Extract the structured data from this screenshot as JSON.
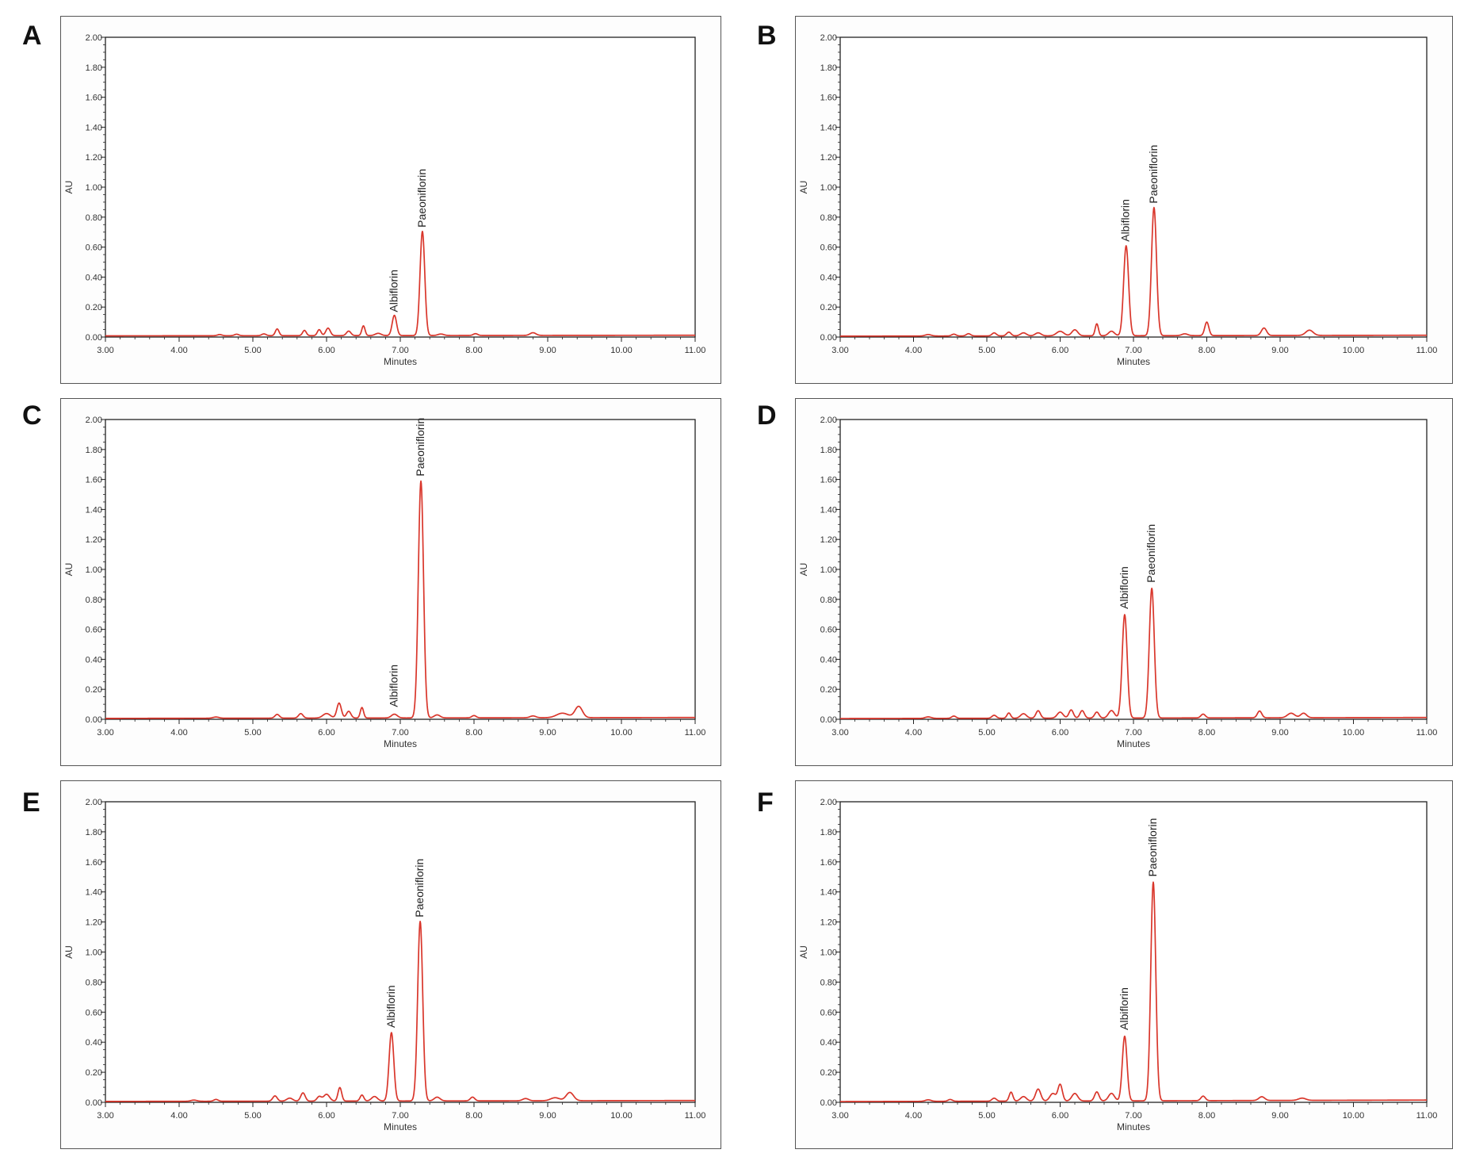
{
  "chart_data": [
    {
      "panel_label": "A",
      "type": "line",
      "xlabel": "Minutes",
      "ylabel": "AU",
      "xlim": [
        3.0,
        11.0
      ],
      "ylim": [
        0.0,
        2.0
      ],
      "x_ticks": [
        "3.00",
        "4.00",
        "5.00",
        "6.00",
        "7.00",
        "8.00",
        "9.00",
        "10.00",
        "11.00"
      ],
      "y_ticks": [
        "0.00",
        "0.20",
        "0.40",
        "0.60",
        "0.80",
        "1.00",
        "1.20",
        "1.40",
        "1.60",
        "1.80",
        "2.00"
      ],
      "color": "#d9362b",
      "baseline": [
        [
          3.0,
          0.008
        ],
        [
          11.0,
          0.012
        ]
      ],
      "peaks": [
        {
          "x": 4.55,
          "h": 0.008,
          "w": 0.03
        },
        {
          "x": 4.78,
          "h": 0.01,
          "w": 0.03
        },
        {
          "x": 5.15,
          "h": 0.012,
          "w": 0.03
        },
        {
          "x": 5.33,
          "h": 0.045,
          "w": 0.025
        },
        {
          "x": 5.7,
          "h": 0.035,
          "w": 0.025
        },
        {
          "x": 5.9,
          "h": 0.04,
          "w": 0.025
        },
        {
          "x": 6.02,
          "h": 0.05,
          "w": 0.03
        },
        {
          "x": 6.3,
          "h": 0.03,
          "w": 0.03
        },
        {
          "x": 6.5,
          "h": 0.065,
          "w": 0.022
        },
        {
          "x": 6.7,
          "h": 0.015,
          "w": 0.04
        },
        {
          "x": 6.92,
          "h": 0.135,
          "w": 0.03
        },
        {
          "x": 7.3,
          "h": 0.695,
          "w": 0.032
        },
        {
          "x": 7.55,
          "h": 0.01,
          "w": 0.04
        },
        {
          "x": 8.02,
          "h": 0.012,
          "w": 0.03
        },
        {
          "x": 8.8,
          "h": 0.018,
          "w": 0.04
        }
      ],
      "annotations": [
        {
          "text": "Albiflorin",
          "x": 6.92,
          "y": 0.145
        },
        {
          "text": "Paeoniflorin",
          "x": 7.3,
          "y": 0.71
        }
      ]
    },
    {
      "panel_label": "B",
      "type": "line",
      "xlabel": "Minutes",
      "ylabel": "AU",
      "xlim": [
        3.0,
        11.0
      ],
      "ylim": [
        0.0,
        2.0
      ],
      "x_ticks": [
        "3.00",
        "4.00",
        "5.00",
        "6.00",
        "7.00",
        "8.00",
        "9.00",
        "10.00",
        "11.00"
      ],
      "y_ticks": [
        "0.00",
        "0.20",
        "0.40",
        "0.60",
        "0.80",
        "1.00",
        "1.20",
        "1.40",
        "1.60",
        "1.80",
        "2.00"
      ],
      "color": "#d9362b",
      "baseline": [
        [
          3.0,
          0.006
        ],
        [
          11.0,
          0.012
        ]
      ],
      "peaks": [
        {
          "x": 4.2,
          "h": 0.01,
          "w": 0.04
        },
        {
          "x": 4.55,
          "h": 0.012,
          "w": 0.03
        },
        {
          "x": 4.75,
          "h": 0.015,
          "w": 0.03
        },
        {
          "x": 5.1,
          "h": 0.02,
          "w": 0.03
        },
        {
          "x": 5.3,
          "h": 0.025,
          "w": 0.03
        },
        {
          "x": 5.5,
          "h": 0.02,
          "w": 0.04
        },
        {
          "x": 5.7,
          "h": 0.02,
          "w": 0.04
        },
        {
          "x": 6.0,
          "h": 0.03,
          "w": 0.05
        },
        {
          "x": 6.2,
          "h": 0.04,
          "w": 0.04
        },
        {
          "x": 6.5,
          "h": 0.08,
          "w": 0.022
        },
        {
          "x": 6.7,
          "h": 0.03,
          "w": 0.04
        },
        {
          "x": 6.9,
          "h": 0.6,
          "w": 0.034
        },
        {
          "x": 7.28,
          "h": 0.855,
          "w": 0.034
        },
        {
          "x": 7.7,
          "h": 0.012,
          "w": 0.04
        },
        {
          "x": 8.0,
          "h": 0.09,
          "w": 0.028
        },
        {
          "x": 8.78,
          "h": 0.05,
          "w": 0.035
        },
        {
          "x": 9.4,
          "h": 0.035,
          "w": 0.05
        }
      ],
      "annotations": [
        {
          "text": "Albiflorin",
          "x": 6.9,
          "y": 0.615
        },
        {
          "text": "Paeoniflorin",
          "x": 7.28,
          "y": 0.87
        }
      ]
    },
    {
      "panel_label": "C",
      "type": "line",
      "xlabel": "Minutes",
      "ylabel": "AU",
      "xlim": [
        3.0,
        11.0
      ],
      "ylim": [
        0.0,
        2.0
      ],
      "x_ticks": [
        "3.00",
        "4.00",
        "5.00",
        "6.00",
        "7.00",
        "8.00",
        "9.00",
        "10.00",
        "11.00"
      ],
      "y_ticks": [
        "0.00",
        "0.20",
        "0.40",
        "0.60",
        "0.80",
        "1.00",
        "1.20",
        "1.40",
        "1.60",
        "1.80",
        "2.00"
      ],
      "color": "#d9362b",
      "baseline": [
        [
          3.0,
          0.006
        ],
        [
          11.0,
          0.012
        ]
      ],
      "peaks": [
        {
          "x": 4.5,
          "h": 0.008,
          "w": 0.04
        },
        {
          "x": 5.33,
          "h": 0.025,
          "w": 0.03
        },
        {
          "x": 5.65,
          "h": 0.03,
          "w": 0.03
        },
        {
          "x": 6.0,
          "h": 0.03,
          "w": 0.05
        },
        {
          "x": 6.17,
          "h": 0.1,
          "w": 0.03
        },
        {
          "x": 6.3,
          "h": 0.045,
          "w": 0.03
        },
        {
          "x": 6.48,
          "h": 0.07,
          "w": 0.022
        },
        {
          "x": 6.92,
          "h": 0.025,
          "w": 0.04
        },
        {
          "x": 7.28,
          "h": 1.58,
          "w": 0.035
        },
        {
          "x": 7.5,
          "h": 0.02,
          "w": 0.04
        },
        {
          "x": 8.0,
          "h": 0.015,
          "w": 0.03
        },
        {
          "x": 8.8,
          "h": 0.012,
          "w": 0.04
        },
        {
          "x": 9.2,
          "h": 0.03,
          "w": 0.08
        },
        {
          "x": 9.42,
          "h": 0.075,
          "w": 0.05
        }
      ],
      "annotations": [
        {
          "text": "Albiflorin",
          "x": 6.92,
          "y": 0.06
        },
        {
          "text": "Paeoniflorin",
          "x": 7.28,
          "y": 1.6
        }
      ]
    },
    {
      "panel_label": "D",
      "type": "line",
      "xlabel": "Minutes",
      "ylabel": "AU",
      "xlim": [
        3.0,
        11.0
      ],
      "ylim": [
        0.0,
        2.0
      ],
      "x_ticks": [
        "3.00",
        "4.00",
        "5.00",
        "6.00",
        "7.00",
        "8.00",
        "9.00",
        "10.00",
        "11.00"
      ],
      "y_ticks": [
        "0.00",
        "0.20",
        "0.40",
        "0.60",
        "0.80",
        "1.00",
        "1.20",
        "1.40",
        "1.60",
        "1.80",
        "2.00"
      ],
      "color": "#d9362b",
      "baseline": [
        [
          3.0,
          0.005
        ],
        [
          11.0,
          0.012
        ]
      ],
      "peaks": [
        {
          "x": 4.2,
          "h": 0.01,
          "w": 0.04
        },
        {
          "x": 4.55,
          "h": 0.015,
          "w": 0.03
        },
        {
          "x": 5.1,
          "h": 0.02,
          "w": 0.03
        },
        {
          "x": 5.3,
          "h": 0.035,
          "w": 0.025
        },
        {
          "x": 5.5,
          "h": 0.03,
          "w": 0.04
        },
        {
          "x": 5.7,
          "h": 0.05,
          "w": 0.03
        },
        {
          "x": 6.0,
          "h": 0.04,
          "w": 0.04
        },
        {
          "x": 6.15,
          "h": 0.055,
          "w": 0.03
        },
        {
          "x": 6.3,
          "h": 0.05,
          "w": 0.03
        },
        {
          "x": 6.5,
          "h": 0.04,
          "w": 0.03
        },
        {
          "x": 6.7,
          "h": 0.05,
          "w": 0.04
        },
        {
          "x": 6.88,
          "h": 0.69,
          "w": 0.034
        },
        {
          "x": 7.25,
          "h": 0.865,
          "w": 0.034
        },
        {
          "x": 7.95,
          "h": 0.025,
          "w": 0.03
        },
        {
          "x": 8.72,
          "h": 0.045,
          "w": 0.03
        },
        {
          "x": 9.15,
          "h": 0.03,
          "w": 0.05
        },
        {
          "x": 9.32,
          "h": 0.03,
          "w": 0.04
        }
      ],
      "annotations": [
        {
          "text": "Albiflorin",
          "x": 6.88,
          "y": 0.715
        },
        {
          "text": "Paeoniflorin",
          "x": 7.25,
          "y": 0.89
        }
      ]
    },
    {
      "panel_label": "E",
      "type": "line",
      "xlabel": "Minutes",
      "ylabel": "AU",
      "xlim": [
        3.0,
        11.0
      ],
      "ylim": [
        0.0,
        2.0
      ],
      "x_ticks": [
        "3.00",
        "4.00",
        "5.00",
        "6.00",
        "7.00",
        "8.00",
        "9.00",
        "10.00",
        "11.00"
      ],
      "y_ticks": [
        "0.00",
        "0.20",
        "0.40",
        "0.60",
        "0.80",
        "1.00",
        "1.20",
        "1.40",
        "1.60",
        "1.80",
        "2.00"
      ],
      "color": "#d9362b",
      "baseline": [
        [
          3.0,
          0.006
        ],
        [
          11.0,
          0.012
        ]
      ],
      "peaks": [
        {
          "x": 4.2,
          "h": 0.008,
          "w": 0.04
        },
        {
          "x": 4.5,
          "h": 0.012,
          "w": 0.03
        },
        {
          "x": 5.3,
          "h": 0.035,
          "w": 0.03
        },
        {
          "x": 5.5,
          "h": 0.02,
          "w": 0.04
        },
        {
          "x": 5.68,
          "h": 0.055,
          "w": 0.03
        },
        {
          "x": 5.9,
          "h": 0.03,
          "w": 0.03
        },
        {
          "x": 6.0,
          "h": 0.045,
          "w": 0.04
        },
        {
          "x": 6.18,
          "h": 0.09,
          "w": 0.025
        },
        {
          "x": 6.48,
          "h": 0.04,
          "w": 0.025
        },
        {
          "x": 6.65,
          "h": 0.03,
          "w": 0.04
        },
        {
          "x": 6.88,
          "h": 0.455,
          "w": 0.032
        },
        {
          "x": 7.27,
          "h": 1.195,
          "w": 0.034
        },
        {
          "x": 7.5,
          "h": 0.025,
          "w": 0.04
        },
        {
          "x": 7.98,
          "h": 0.025,
          "w": 0.03
        },
        {
          "x": 8.7,
          "h": 0.015,
          "w": 0.04
        },
        {
          "x": 9.1,
          "h": 0.02,
          "w": 0.06
        },
        {
          "x": 9.3,
          "h": 0.055,
          "w": 0.05
        }
      ],
      "annotations": [
        {
          "text": "Albiflorin",
          "x": 6.88,
          "y": 0.475
        },
        {
          "text": "Paeoniflorin",
          "x": 7.27,
          "y": 1.21
        }
      ]
    },
    {
      "panel_label": "F",
      "type": "line",
      "xlabel": "Minutes",
      "ylabel": "AU",
      "xlim": [
        3.0,
        11.0
      ],
      "ylim": [
        0.0,
        2.0
      ],
      "x_ticks": [
        "3.00",
        "4.00",
        "5.00",
        "6.00",
        "7.00",
        "8.00",
        "9.00",
        "10.00",
        "11.00"
      ],
      "y_ticks": [
        "0.00",
        "0.20",
        "0.40",
        "0.60",
        "0.80",
        "1.00",
        "1.20",
        "1.40",
        "1.60",
        "1.80",
        "2.00"
      ],
      "color": "#d9362b",
      "baseline": [
        [
          3.0,
          0.005
        ],
        [
          11.0,
          0.015
        ]
      ],
      "peaks": [
        {
          "x": 4.2,
          "h": 0.01,
          "w": 0.04
        },
        {
          "x": 4.5,
          "h": 0.012,
          "w": 0.03
        },
        {
          "x": 5.1,
          "h": 0.02,
          "w": 0.03
        },
        {
          "x": 5.33,
          "h": 0.06,
          "w": 0.025
        },
        {
          "x": 5.5,
          "h": 0.03,
          "w": 0.04
        },
        {
          "x": 5.7,
          "h": 0.08,
          "w": 0.035
        },
        {
          "x": 5.9,
          "h": 0.05,
          "w": 0.04
        },
        {
          "x": 6.0,
          "h": 0.11,
          "w": 0.03
        },
        {
          "x": 6.2,
          "h": 0.05,
          "w": 0.04
        },
        {
          "x": 6.5,
          "h": 0.06,
          "w": 0.03
        },
        {
          "x": 6.7,
          "h": 0.05,
          "w": 0.04
        },
        {
          "x": 6.88,
          "h": 0.43,
          "w": 0.032
        },
        {
          "x": 7.27,
          "h": 1.455,
          "w": 0.034
        },
        {
          "x": 7.95,
          "h": 0.03,
          "w": 0.03
        },
        {
          "x": 8.75,
          "h": 0.025,
          "w": 0.04
        },
        {
          "x": 9.3,
          "h": 0.015,
          "w": 0.05
        }
      ],
      "annotations": [
        {
          "text": "Albiflorin",
          "x": 6.88,
          "y": 0.46
        },
        {
          "text": "Paeoniflorin",
          "x": 7.27,
          "y": 1.48
        }
      ]
    }
  ]
}
